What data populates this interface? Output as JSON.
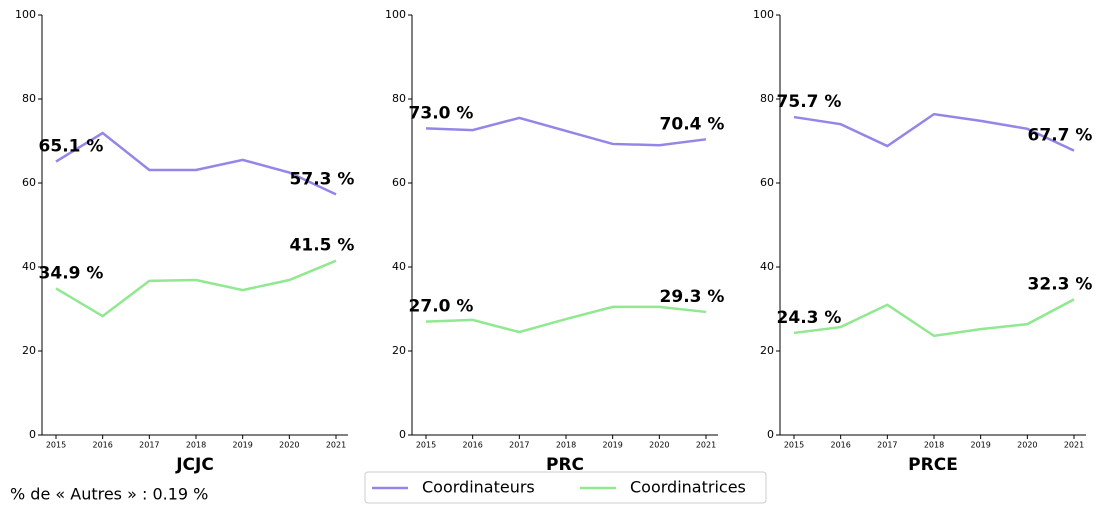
{
  "chart_data": [
    {
      "type": "line",
      "title": "JCJC",
      "categories": [
        "2015",
        "2016",
        "2017",
        "2018",
        "2019",
        "2020",
        "2021"
      ],
      "ylim": [
        0,
        100
      ],
      "yticks": [
        0,
        20,
        40,
        60,
        80,
        100
      ],
      "series": [
        {
          "name": "Coordinateurs",
          "color": "#9386e8",
          "values": [
            65.1,
            71.9,
            63.1,
            63.1,
            65.5,
            62.5,
            57.3
          ],
          "value_labels": [
            "65.1 %",
            null,
            null,
            null,
            null,
            null,
            "57.3 %"
          ]
        },
        {
          "name": "Coordinatrices",
          "color": "#90e890",
          "values": [
            34.9,
            28.3,
            36.7,
            36.9,
            34.5,
            36.9,
            41.5
          ],
          "value_labels": [
            "34.9 %",
            null,
            null,
            null,
            null,
            null,
            "41.5 %"
          ]
        }
      ]
    },
    {
      "type": "line",
      "title": "PRC",
      "categories": [
        "2015",
        "2016",
        "2017",
        "2018",
        "2019",
        "2020",
        "2021"
      ],
      "ylim": [
        0,
        100
      ],
      "yticks": [
        0,
        20,
        40,
        60,
        80,
        100
      ],
      "series": [
        {
          "name": "Coordinateurs",
          "color": "#9386e8",
          "values": [
            73.0,
            72.6,
            75.5,
            72.4,
            69.3,
            69.0,
            70.4
          ],
          "value_labels": [
            "73.0 %",
            null,
            null,
            null,
            null,
            null,
            "70.4 %"
          ]
        },
        {
          "name": "Coordinatrices",
          "color": "#90e890",
          "values": [
            27.0,
            27.4,
            24.5,
            27.6,
            30.5,
            30.5,
            29.3
          ],
          "value_labels": [
            "27.0 %",
            null,
            null,
            null,
            null,
            null,
            "29.3 %"
          ]
        }
      ]
    },
    {
      "type": "line",
      "title": "PRCE",
      "categories": [
        "2015",
        "2016",
        "2017",
        "2018",
        "2019",
        "2020",
        "2021"
      ],
      "ylim": [
        0,
        100
      ],
      "yticks": [
        0,
        20,
        40,
        60,
        80,
        100
      ],
      "series": [
        {
          "name": "Coordinateurs",
          "color": "#9386e8",
          "values": [
            75.7,
            74.0,
            68.8,
            76.4,
            74.8,
            72.9,
            67.7
          ],
          "value_labels": [
            "75.7 %",
            null,
            null,
            null,
            null,
            null,
            "67.7 %"
          ]
        },
        {
          "name": "Coordinatrices",
          "color": "#90e890",
          "values": [
            24.3,
            25.7,
            31.0,
            23.6,
            25.2,
            26.4,
            32.3
          ],
          "value_labels": [
            "24.3 %",
            null,
            null,
            null,
            null,
            null,
            "32.3 %"
          ]
        }
      ]
    }
  ],
  "footnote": "% de « Autres » : 0.19 %"
}
